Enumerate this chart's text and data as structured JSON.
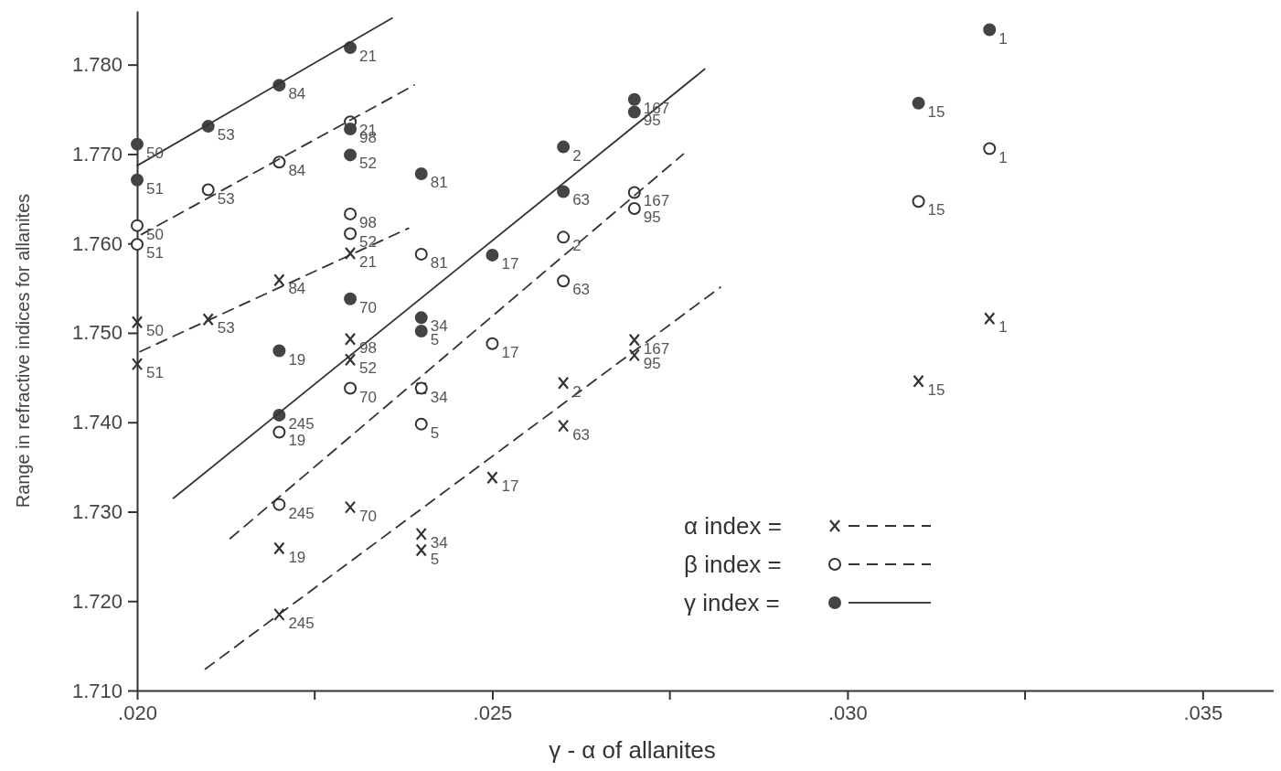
{
  "chart_data": {
    "type": "scatter",
    "xlabel": "γ - α of allanites",
    "ylabel": "Range in refractive indices for allanites",
    "xlim": [
      0.02,
      0.036
    ],
    "ylim": [
      1.71,
      1.786
    ],
    "xticks": [
      {
        "value": 0.02,
        "label": ".020"
      },
      {
        "value": 0.025,
        "label": ".025"
      },
      {
        "value": 0.03,
        "label": ".030"
      },
      {
        "value": 0.035,
        "label": ".035"
      }
    ],
    "yticks": [
      {
        "value": 1.71,
        "label": "1.710"
      },
      {
        "value": 1.72,
        "label": "1.720"
      },
      {
        "value": 1.73,
        "label": "1.730"
      },
      {
        "value": 1.74,
        "label": "1.740"
      },
      {
        "value": 1.75,
        "label": "1.750"
      },
      {
        "value": 1.76,
        "label": "1.760"
      },
      {
        "value": 1.77,
        "label": "1.770"
      },
      {
        "value": 1.78,
        "label": "1.780"
      }
    ],
    "grid": false,
    "legend": "bottom right",
    "series": [
      {
        "name": "α index =",
        "marker": "cross",
        "line_style": "dashed",
        "color": "#333333",
        "x": [
          0.02,
          0.02,
          0.021,
          0.022,
          0.023,
          0.023,
          0.023,
          0.024,
          0.023,
          0.022,
          0.022,
          0.024,
          0.024,
          0.025,
          0.026,
          0.026,
          0.027,
          0.027,
          0.031,
          0.032
        ],
        "values": [
          1.7512,
          1.7465,
          1.7515,
          1.7559,
          1.7589,
          1.7493,
          1.747,
          1.7438,
          1.7305,
          1.7259,
          1.7185,
          1.7275,
          1.7257,
          1.7338,
          1.7444,
          1.7396,
          1.7492,
          1.7475,
          1.7446,
          1.7516
        ]
      },
      {
        "name": "β index =",
        "marker": "circle",
        "line_style": "dashed",
        "color": "#333333",
        "x": [
          0.02,
          0.02,
          0.021,
          0.022,
          0.023,
          0.023,
          0.023,
          0.024,
          0.023,
          0.024,
          0.024,
          0.022,
          0.022,
          0.025,
          0.026,
          0.026,
          0.027,
          0.027,
          0.031,
          0.032
        ],
        "values": [
          1.762,
          1.7599,
          1.766,
          1.7691,
          1.7736,
          1.7633,
          1.7611,
          1.7588,
          1.7438,
          1.7438,
          1.7398,
          1.7389,
          1.7308,
          1.7488,
          1.7607,
          1.7558,
          1.7657,
          1.7639,
          1.7647,
          1.7706
        ]
      },
      {
        "name": "γ index =",
        "marker": "circle",
        "line_style": "solid",
        "color": "#444444",
        "x": [
          0.02,
          0.02,
          0.021,
          0.022,
          0.023,
          0.023,
          0.023,
          0.024,
          0.023,
          0.022,
          0.024,
          0.024,
          0.022,
          0.025,
          0.026,
          0.026,
          0.027,
          0.027,
          0.031,
          0.032
        ],
        "values": [
          1.7711,
          1.7671,
          1.7731,
          1.7777,
          1.7819,
          1.7728,
          1.7699,
          1.7678,
          1.7538,
          1.748,
          1.7517,
          1.7502,
          1.7408,
          1.7587,
          1.7708,
          1.7658,
          1.7761,
          1.7747,
          1.7757,
          1.7839
        ]
      },
      {
        "type": "line",
        "marker": "none",
        "line_style": "solid",
        "color": "#333333",
        "x": [
          0.02,
          0.02359
        ],
        "values": [
          1.7687,
          1.7852
        ]
      },
      {
        "type": "line",
        "marker": "none",
        "line_style": "solid",
        "color": "#333333",
        "x": [
          0.02051,
          0.02799
        ],
        "values": [
          1.7315,
          1.7795
        ]
      },
      {
        "type": "line",
        "marker": "none",
        "line_style": "dashed",
        "color": "#333333",
        "x": [
          0.02006,
          0.0239
        ],
        "values": [
          1.761,
          1.7777
        ]
      },
      {
        "type": "line",
        "marker": "none",
        "line_style": "dashed",
        "color": "#333333",
        "x": [
          0.02131,
          0.02769
        ],
        "values": [
          1.727,
          1.77
        ]
      },
      {
        "type": "line",
        "marker": "none",
        "line_style": "dashed",
        "color": "#333333",
        "x": [
          0.02004,
          0.02382
        ],
        "values": [
          1.7479,
          1.7617
        ]
      },
      {
        "type": "line",
        "marker": "none",
        "line_style": "dashed",
        "color": "#333333",
        "x": [
          0.02096,
          0.02821
        ],
        "values": [
          1.7124,
          1.7551
        ]
      }
    ],
    "annotations": [
      {
        "text": "50",
        "x": 0.02,
        "y": 1.7512
      },
      {
        "text": "51",
        "x": 0.02,
        "y": 1.7465
      },
      {
        "text": "53",
        "x": 0.021,
        "y": 1.7515
      },
      {
        "text": "84",
        "x": 0.022,
        "y": 1.7559
      },
      {
        "text": "21",
        "x": 0.023,
        "y": 1.7589
      },
      {
        "text": "98",
        "x": 0.023,
        "y": 1.7493
      },
      {
        "text": "52",
        "x": 0.023,
        "y": 1.747
      },
      {
        "text": "70",
        "x": 0.023,
        "y": 1.7305
      },
      {
        "text": "19",
        "x": 0.022,
        "y": 1.7259
      },
      {
        "text": "245",
        "x": 0.022,
        "y": 1.7185
      },
      {
        "text": "34",
        "x": 0.024,
        "y": 1.7275
      },
      {
        "text": "5",
        "x": 0.024,
        "y": 1.7257
      },
      {
        "text": "17",
        "x": 0.025,
        "y": 1.7338
      },
      {
        "text": "2",
        "x": 0.026,
        "y": 1.7444
      },
      {
        "text": "63",
        "x": 0.026,
        "y": 1.7396
      },
      {
        "text": "167",
        "x": 0.027,
        "y": 1.7492
      },
      {
        "text": "95",
        "x": 0.027,
        "y": 1.7475
      },
      {
        "text": "15",
        "x": 0.031,
        "y": 1.7446
      },
      {
        "text": "1",
        "x": 0.032,
        "y": 1.7516
      },
      {
        "text": "50",
        "x": 0.02,
        "y": 1.762
      },
      {
        "text": "51",
        "x": 0.02,
        "y": 1.7599
      },
      {
        "text": "53",
        "x": 0.021,
        "y": 1.766
      },
      {
        "text": "84",
        "x": 0.022,
        "y": 1.7691
      },
      {
        "text": "21",
        "x": 0.023,
        "y": 1.7736
      },
      {
        "text": "98",
        "x": 0.023,
        "y": 1.7633
      },
      {
        "text": "52",
        "x": 0.023,
        "y": 1.7611
      },
      {
        "text": "81",
        "x": 0.024,
        "y": 1.7588
      },
      {
        "text": "70",
        "x": 0.023,
        "y": 1.7438
      },
      {
        "text": "34",
        "x": 0.024,
        "y": 1.7438
      },
      {
        "text": "5",
        "x": 0.024,
        "y": 1.7398
      },
      {
        "text": "19",
        "x": 0.022,
        "y": 1.7389
      },
      {
        "text": "245",
        "x": 0.022,
        "y": 1.7308
      },
      {
        "text": "17",
        "x": 0.025,
        "y": 1.7488
      },
      {
        "text": "2",
        "x": 0.026,
        "y": 1.7607
      },
      {
        "text": "63",
        "x": 0.026,
        "y": 1.7558
      },
      {
        "text": "167",
        "x": 0.027,
        "y": 1.7657
      },
      {
        "text": "95",
        "x": 0.027,
        "y": 1.7639
      },
      {
        "text": "15",
        "x": 0.031,
        "y": 1.7647
      },
      {
        "text": "1",
        "x": 0.032,
        "y": 1.7706
      },
      {
        "text": "50",
        "x": 0.02,
        "y": 1.7711
      },
      {
        "text": "51",
        "x": 0.02,
        "y": 1.7671
      },
      {
        "text": "53",
        "x": 0.021,
        "y": 1.7731
      },
      {
        "text": "84",
        "x": 0.022,
        "y": 1.7777
      },
      {
        "text": "21",
        "x": 0.023,
        "y": 1.7819
      },
      {
        "text": "98",
        "x": 0.023,
        "y": 1.7728
      },
      {
        "text": "52",
        "x": 0.023,
        "y": 1.7699
      },
      {
        "text": "81",
        "x": 0.024,
        "y": 1.7678
      },
      {
        "text": "70",
        "x": 0.023,
        "y": 1.7538
      },
      {
        "text": "19",
        "x": 0.022,
        "y": 1.748
      },
      {
        "text": "34",
        "x": 0.024,
        "y": 1.7517
      },
      {
        "text": "5",
        "x": 0.024,
        "y": 1.7502
      },
      {
        "text": "245",
        "x": 0.022,
        "y": 1.7408
      },
      {
        "text": "17",
        "x": 0.025,
        "y": 1.7587
      },
      {
        "text": "2",
        "x": 0.026,
        "y": 1.7708
      },
      {
        "text": "63",
        "x": 0.026,
        "y": 1.7658
      },
      {
        "text": "167",
        "x": 0.027,
        "y": 1.7761
      },
      {
        "text": "95",
        "x": 0.027,
        "y": 1.7747
      },
      {
        "text": "15",
        "x": 0.031,
        "y": 1.7757
      },
      {
        "text": "1",
        "x": 0.032,
        "y": 1.7839
      }
    ]
  }
}
